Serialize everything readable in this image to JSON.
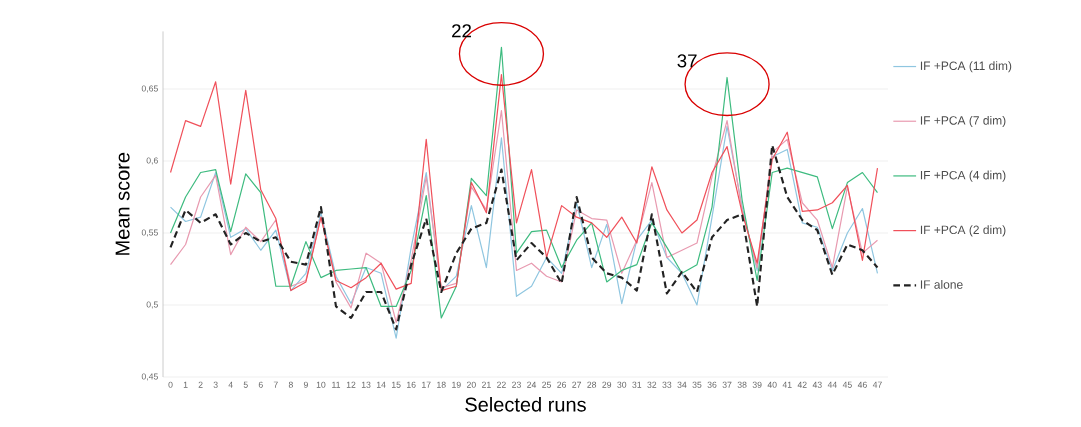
{
  "chart_data": {
    "type": "line",
    "xlabel": "Selected runs",
    "ylabel": "Mean score",
    "categories": [
      "0",
      "1",
      "2",
      "3",
      "4",
      "5",
      "6",
      "7",
      "8",
      "9",
      "10",
      "11",
      "12",
      "13",
      "14",
      "15",
      "16",
      "17",
      "18",
      "19",
      "20",
      "21",
      "22",
      "23",
      "24",
      "25",
      "26",
      "27",
      "28",
      "29",
      "30",
      "31",
      "32",
      "33",
      "34",
      "35",
      "36",
      "37",
      "38",
      "39",
      "40",
      "41",
      "42",
      "43",
      "44",
      "45",
      "46",
      "47"
    ],
    "ylim": [
      0.45,
      0.69
    ],
    "yticks": [
      {
        "value": 0.45,
        "label": "0,45"
      },
      {
        "value": 0.5,
        "label": "0,5"
      },
      {
        "value": 0.55,
        "label": "0,55"
      },
      {
        "value": 0.6,
        "label": "0,6"
      },
      {
        "value": 0.65,
        "label": "0,65"
      }
    ],
    "grid": "y",
    "legend": "right",
    "series": [
      {
        "name": "IF +PCA (11 dim)",
        "color": "#8fc6e0",
        "line_style": "solid",
        "values": [
          0.568,
          0.558,
          0.561,
          0.592,
          0.547,
          0.553,
          0.538,
          0.552,
          0.51,
          0.522,
          0.564,
          0.52,
          0.501,
          0.526,
          0.522,
          0.477,
          0.54,
          0.592,
          0.51,
          0.52,
          0.569,
          0.526,
          0.616,
          0.506,
          0.513,
          0.533,
          0.522,
          0.571,
          0.526,
          0.556,
          0.501,
          0.545,
          0.559,
          0.533,
          0.522,
          0.5,
          0.561,
          0.624,
          0.568,
          0.524,
          0.603,
          0.608,
          0.557,
          0.554,
          0.524,
          0.55,
          0.567,
          0.522
        ]
      },
      {
        "name": "IF +PCA (7 dim)",
        "color": "#e89ab0",
        "line_style": "solid",
        "values": [
          0.528,
          0.542,
          0.575,
          0.59,
          0.535,
          0.554,
          0.544,
          0.559,
          0.513,
          0.517,
          0.561,
          0.516,
          0.498,
          0.536,
          0.529,
          0.488,
          0.531,
          0.589,
          0.512,
          0.515,
          0.582,
          0.566,
          0.635,
          0.524,
          0.529,
          0.52,
          0.516,
          0.566,
          0.56,
          0.559,
          0.522,
          0.545,
          0.585,
          0.533,
          0.538,
          0.543,
          0.589,
          0.628,
          0.566,
          0.526,
          0.606,
          0.615,
          0.571,
          0.559,
          0.526,
          0.582,
          0.536,
          0.545
        ]
      },
      {
        "name": "IF +PCA (4 dim)",
        "color": "#3dbb7f",
        "line_style": "solid",
        "values": [
          0.55,
          0.575,
          0.592,
          0.594,
          0.551,
          0.591,
          0.578,
          0.513,
          0.513,
          0.544,
          0.519,
          0.524,
          0.525,
          0.526,
          0.499,
          0.499,
          0.524,
          0.576,
          0.491,
          0.513,
          0.588,
          0.576,
          0.679,
          0.536,
          0.551,
          0.552,
          0.526,
          0.545,
          0.557,
          0.516,
          0.524,
          0.528,
          0.557,
          0.54,
          0.522,
          0.528,
          0.568,
          0.658,
          0.573,
          0.517,
          0.592,
          0.595,
          0.592,
          0.589,
          0.553,
          0.585,
          0.592,
          0.578
        ]
      },
      {
        "name": "IF +PCA (2 dim)",
        "color": "#f0505a",
        "line_style": "solid",
        "values": [
          0.592,
          0.628,
          0.624,
          0.655,
          0.584,
          0.649,
          0.58,
          0.56,
          0.51,
          0.516,
          0.561,
          0.517,
          0.512,
          0.519,
          0.529,
          0.511,
          0.515,
          0.615,
          0.51,
          0.513,
          0.585,
          0.564,
          0.66,
          0.557,
          0.594,
          0.533,
          0.569,
          0.561,
          0.557,
          0.547,
          0.561,
          0.543,
          0.596,
          0.566,
          0.55,
          0.559,
          0.592,
          0.61,
          0.564,
          0.529,
          0.601,
          0.62,
          0.565,
          0.566,
          0.571,
          0.583,
          0.531,
          0.595
        ]
      },
      {
        "name": "IF alone",
        "color": "#222222",
        "line_style": "dashed",
        "values": [
          0.54,
          0.566,
          0.557,
          0.563,
          0.542,
          0.55,
          0.544,
          0.547,
          0.53,
          0.528,
          0.568,
          0.499,
          0.491,
          0.509,
          0.509,
          0.483,
          0.528,
          0.56,
          0.509,
          0.536,
          0.553,
          0.557,
          0.594,
          0.531,
          0.543,
          0.533,
          0.515,
          0.575,
          0.533,
          0.522,
          0.519,
          0.51,
          0.563,
          0.508,
          0.523,
          0.509,
          0.547,
          0.559,
          0.563,
          0.499,
          0.611,
          0.575,
          0.559,
          0.552,
          0.521,
          0.542,
          0.538,
          0.526
        ]
      }
    ],
    "annotations": [
      {
        "text": "22",
        "x": "22",
        "y": 0.679
      },
      {
        "text": "37",
        "x": "37",
        "y": 0.658
      }
    ]
  }
}
